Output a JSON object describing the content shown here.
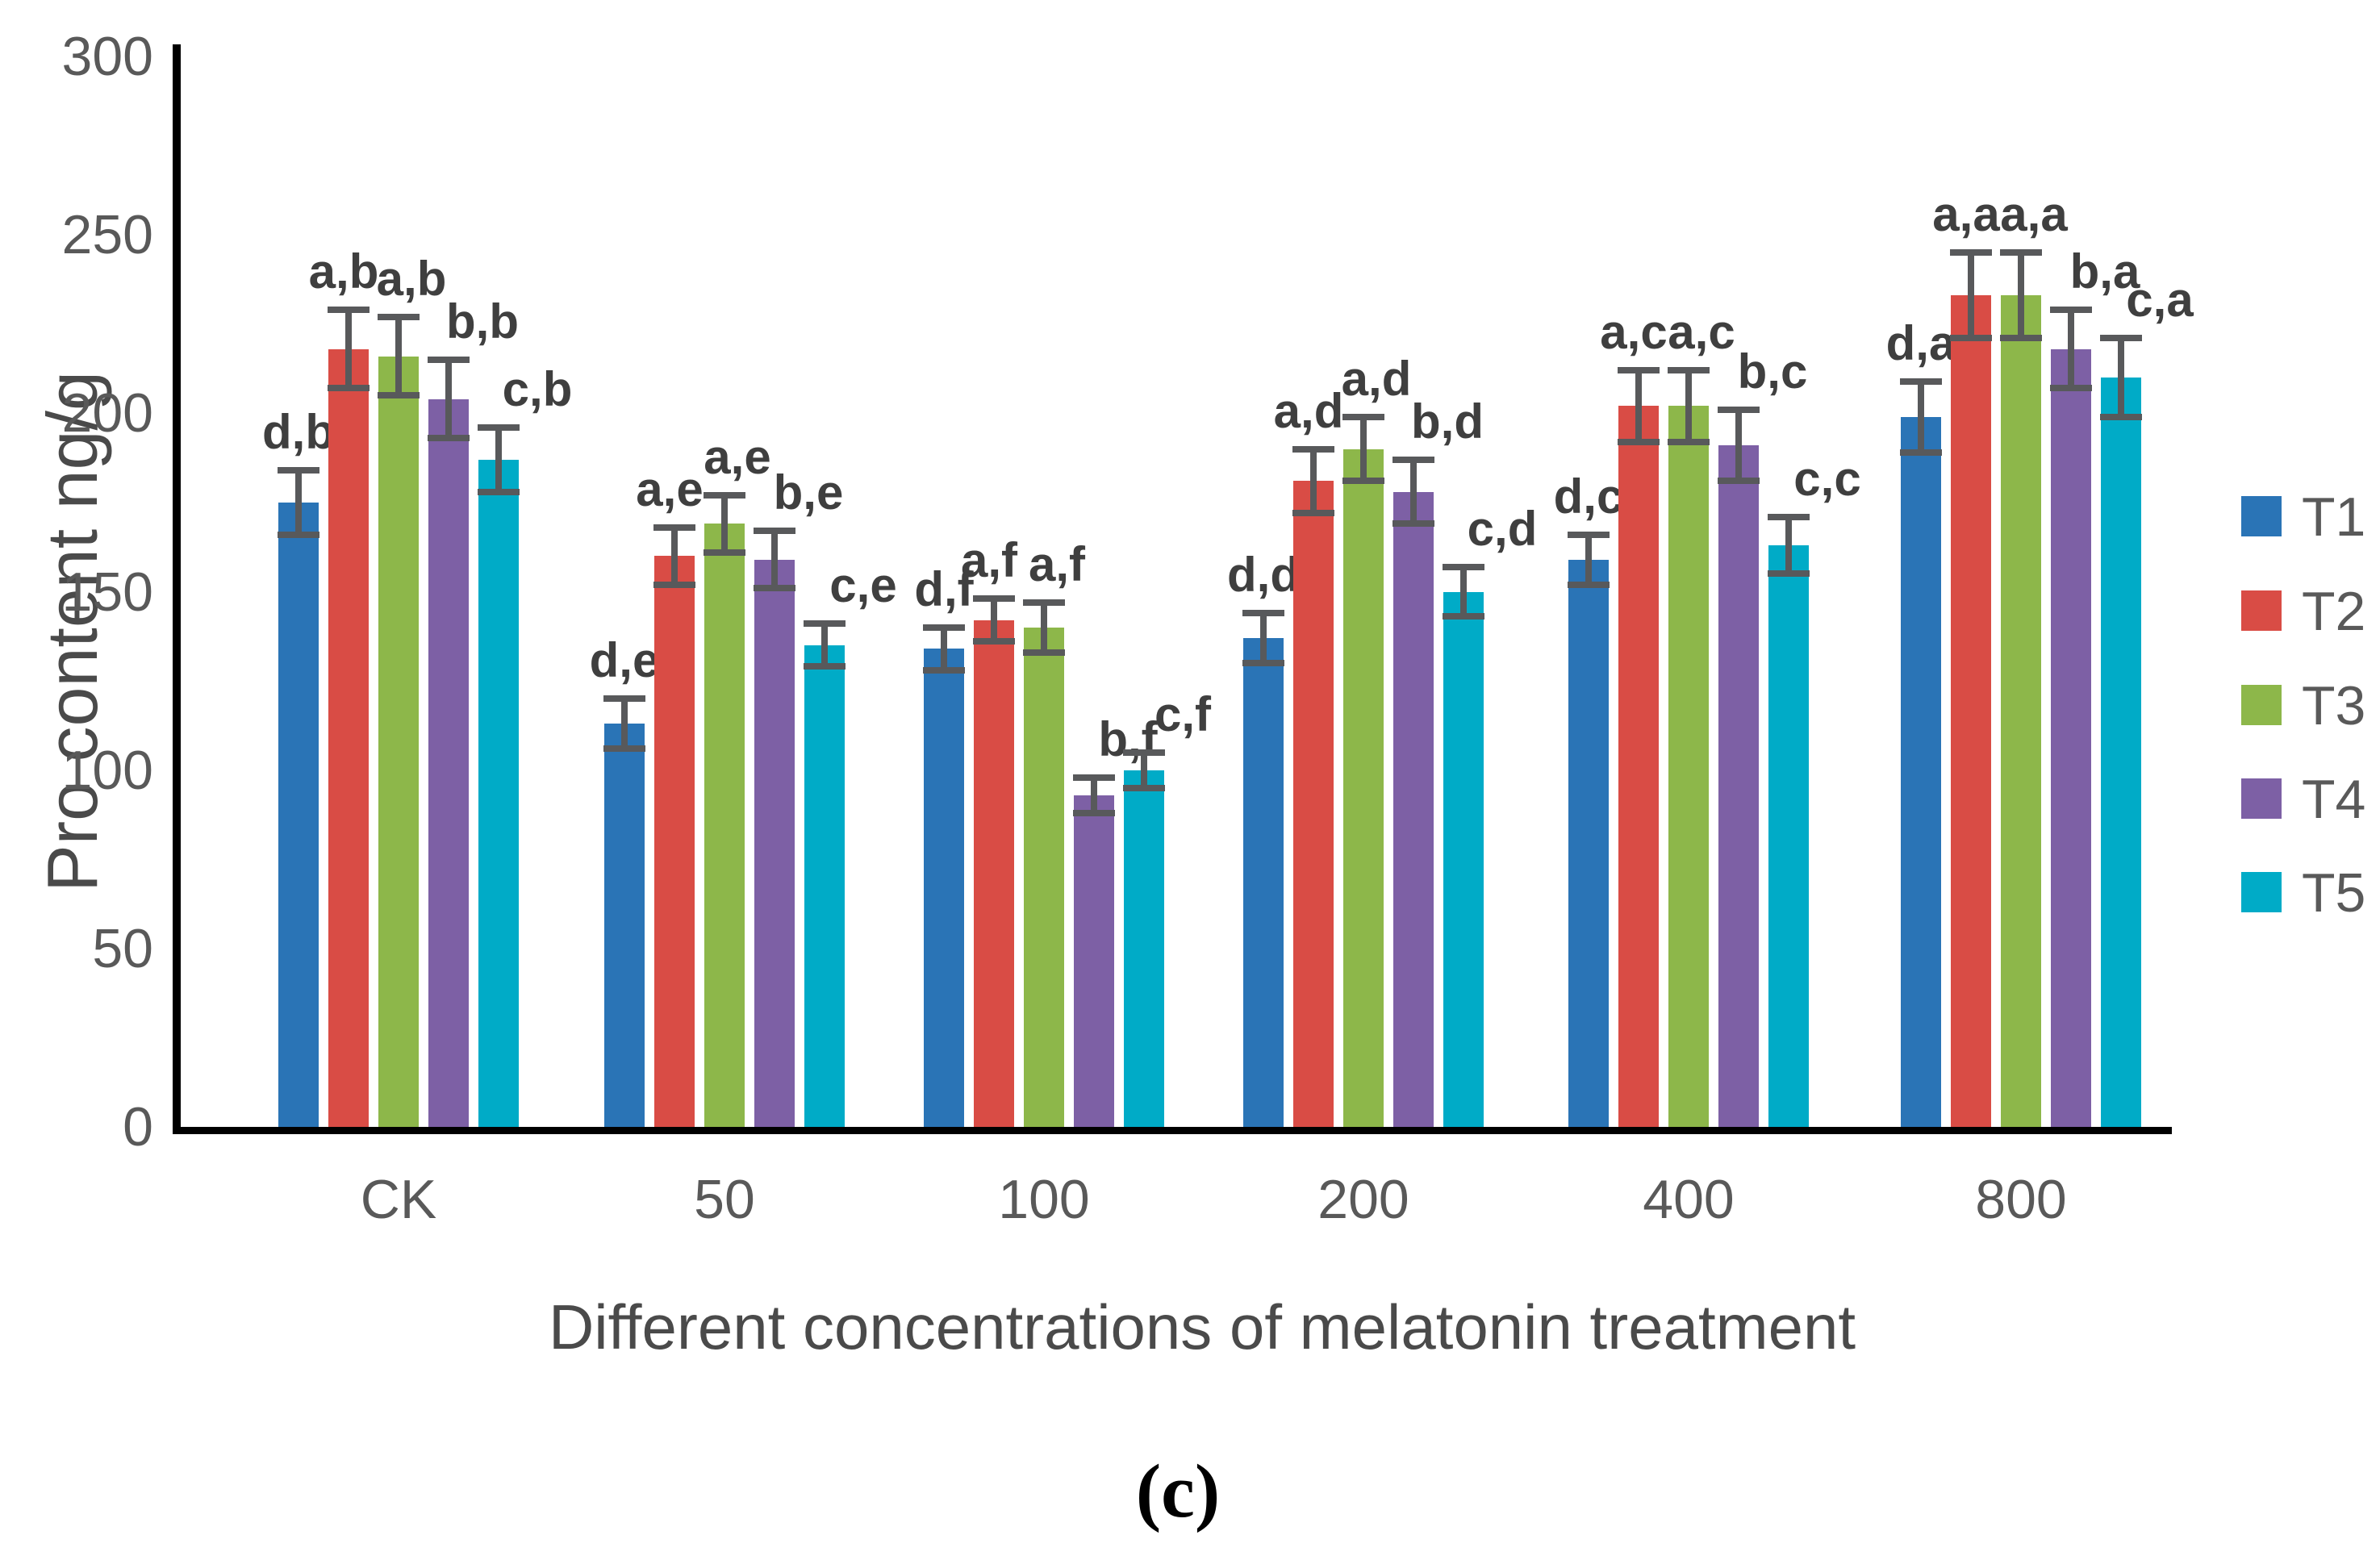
{
  "figure": {
    "caption": "(c)",
    "background": "#ffffff"
  },
  "chart_data": {
    "type": "bar",
    "title": "",
    "xlabel": "Different concentrations of melatonin treatment",
    "ylabel": "Pro content ng/g",
    "categories": [
      "CK",
      "50",
      "100",
      "200",
      "400",
      "800"
    ],
    "y_ticks": [
      0,
      50,
      100,
      150,
      200,
      250,
      300
    ],
    "ylim": [
      0,
      300
    ],
    "grid": false,
    "legend_position": "right",
    "axis_color": "#000000",
    "error_bar_color": "#58595B",
    "tick_label_color": "#595959",
    "annotation_color": "#3F3F3F",
    "series": [
      {
        "name": "T1",
        "color": "#2A74B6",
        "values": [
          175,
          113,
          134,
          137,
          159,
          199
        ],
        "errors": [
          9,
          7,
          6,
          7,
          7,
          10
        ]
      },
      {
        "name": "T2",
        "color": "#D94C45",
        "values": [
          218,
          160,
          142,
          181,
          202,
          233
        ],
        "errors": [
          11,
          8,
          6,
          9,
          10,
          12
        ]
      },
      {
        "name": "T3",
        "color": "#8DB74A",
        "values": [
          216,
          169,
          140,
          190,
          202,
          233
        ],
        "errors": [
          11,
          8,
          7,
          9,
          10,
          12
        ]
      },
      {
        "name": "T4",
        "color": "#7D60A5",
        "values": [
          204,
          159,
          93,
          178,
          191,
          218
        ],
        "errors": [
          11,
          8,
          5,
          9,
          10,
          11
        ]
      },
      {
        "name": "T5",
        "color": "#00ABC7",
        "values": [
          187,
          135,
          100,
          150,
          163,
          210
        ],
        "errors": [
          9,
          6,
          5,
          7,
          8,
          11
        ]
      }
    ],
    "annotations": [
      [
        "d,b",
        "a,b",
        "a,b",
        "b,b",
        "c,b"
      ],
      [
        "d,e",
        "a,e",
        "a,e",
        "b,e",
        "c,e"
      ],
      [
        "d,f",
        "a,f",
        "a,f",
        "b,f",
        "c,f"
      ],
      [
        "d,d",
        "a,d",
        "a,d",
        "b,d",
        "c,d"
      ],
      [
        "d,c",
        "a,c",
        "a,c",
        "b,c",
        "c,c"
      ],
      [
        "d,a",
        "a,a",
        "a,a",
        "b,a",
        "c,a"
      ]
    ]
  }
}
